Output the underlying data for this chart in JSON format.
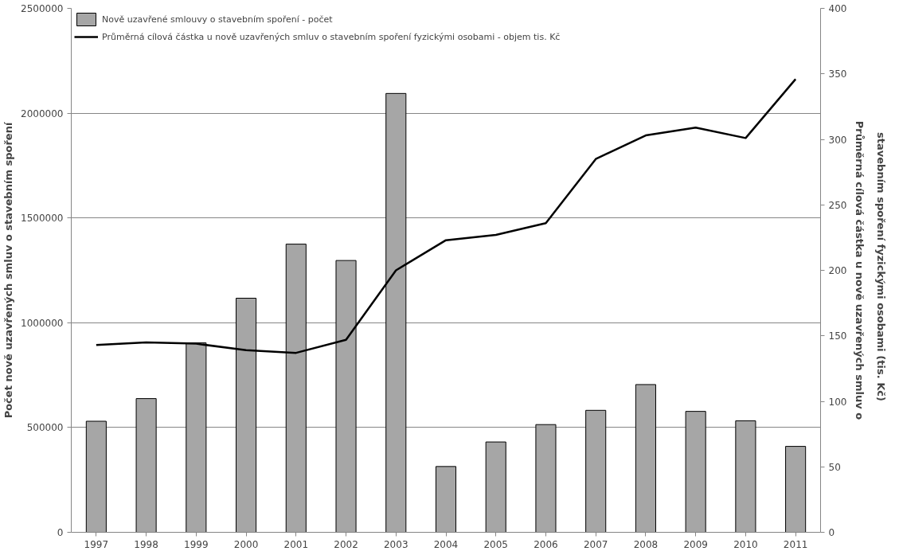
{
  "chart_data": {
    "type": "bar",
    "categories": [
      "1997",
      "1998",
      "1999",
      "2000",
      "2001",
      "2002",
      "2003",
      "2004",
      "2005",
      "2006",
      "2007",
      "2008",
      "2009",
      "2010",
      "2011"
    ],
    "series": [
      {
        "name": "Nově uzavřené smlouvy o stavebním spoření - počet",
        "color": "#a6a6a6",
        "values": [
          530000,
          638000,
          904000,
          1117000,
          1375000,
          1297000,
          2094000,
          314000,
          431000,
          514000,
          582000,
          705000,
          577000,
          532000,
          410000
        ]
      },
      {
        "name": "Průměrná cílová částka u nově uzavřených smluv o stavebním spoření fyzickými osobami - objem tis. Kč",
        "type": "line",
        "axis": "y2",
        "color": "#000000",
        "values": [
          143,
          145,
          144,
          139,
          137,
          147,
          200,
          223,
          227,
          236,
          285,
          303,
          309,
          301,
          346
        ]
      }
    ],
    "ylabel": "Počet nově uzavřených smluv o stavebním spoření",
    "y2label": "Průměrná cílová částka u nově uzavřených smluv o\nstavebním spoření fyzickými  osobami  (tis. Kč)",
    "ylim": [
      0,
      2500000
    ],
    "yticks": [
      0,
      500000,
      1000000,
      1500000,
      2000000,
      2500000
    ],
    "y2lim": [
      0,
      400
    ],
    "y2ticks": [
      0,
      50,
      100,
      150,
      200,
      250,
      300,
      350,
      400
    ],
    "grid": "y",
    "legend": "top",
    "line_style": "solid"
  }
}
